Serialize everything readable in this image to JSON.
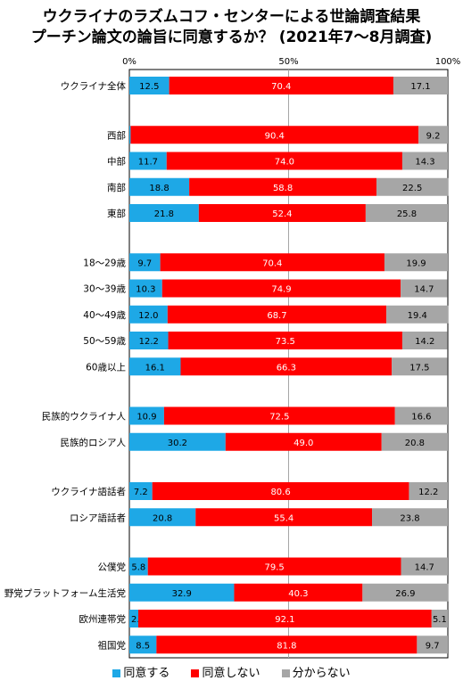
{
  "title_line1": "ウクライナのラズムコフ・センターによる世論調査結果",
  "title_line2": "プーチン論文の論旨に同意するか？ (2021年7～8月調査)",
  "chart_data": {
    "type": "bar",
    "orientation": "horizontal",
    "stacked": true,
    "normalized": true,
    "title": "ウクライナのラズムコフ・センターによる世論調査結果 プーチン論文の論旨に同意するか？ (2021年7～8月調査)",
    "xlim": [
      0,
      100
    ],
    "x_ticks": [
      "0%",
      "50%",
      "100%"
    ],
    "grid": "vertical line at 50%",
    "legend_position": "bottom",
    "groups": [
      [
        "ウクライナ全体"
      ],
      [
        "西部",
        "中部",
        "南部",
        "東部"
      ],
      [
        "18～29歳",
        "30～39歳",
        "40～49歳",
        "50～59歳",
        "60歳以上"
      ],
      [
        "民族的ウクライナ人",
        "民族的ロシア人"
      ],
      [
        "ウクライナ語話者",
        "ロシア語話者"
      ],
      [
        "公僕党",
        "野党プラットフォーム生活党",
        "欧州連帯党",
        "祖国党"
      ]
    ],
    "categories": [
      "ウクライナ全体",
      "西部",
      "中部",
      "南部",
      "東部",
      "18～29歳",
      "30～39歳",
      "40～49歳",
      "50～59歳",
      "60歳以上",
      "民族的ウクライナ人",
      "民族的ロシア人",
      "ウクライナ語話者",
      "ロシア語話者",
      "公僕党",
      "野党プラットフォーム生活党",
      "欧州連帯党",
      "祖国党"
    ],
    "series": [
      {
        "name": "同意する",
        "color": "#1ea8e6",
        "values": [
          12.5,
          0.4,
          11.7,
          18.8,
          21.8,
          9.7,
          10.3,
          12.0,
          12.2,
          16.1,
          10.9,
          30.2,
          7.2,
          20.8,
          5.8,
          32.9,
          2.8,
          8.5
        ]
      },
      {
        "name": "同意しない",
        "color": "#ff0000",
        "values": [
          70.4,
          90.4,
          74.0,
          58.8,
          52.4,
          70.4,
          74.9,
          68.7,
          73.5,
          66.3,
          72.5,
          49.0,
          80.6,
          55.4,
          79.5,
          40.3,
          92.1,
          81.8
        ]
      },
      {
        "name": "分からない",
        "color": "#a6a6a6",
        "values": [
          17.1,
          9.2,
          14.3,
          22.5,
          25.8,
          19.9,
          14.7,
          19.4,
          14.2,
          17.5,
          16.6,
          20.8,
          12.2,
          23.8,
          14.7,
          26.9,
          5.1,
          9.7
        ]
      }
    ]
  }
}
